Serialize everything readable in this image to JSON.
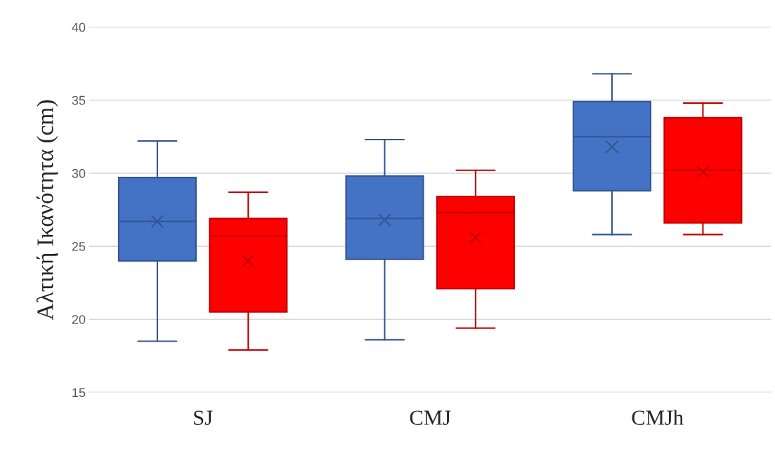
{
  "chart_data": {
    "type": "box",
    "ylabel": "Αλτική Ικανότητα (cm)",
    "categories": [
      "SJ",
      "CMJ",
      "CMJh"
    ],
    "ylim": [
      15,
      40
    ],
    "yticks": [
      15,
      20,
      25,
      30,
      35,
      40
    ],
    "grid": "y",
    "legend": false,
    "series": [
      {
        "color": "#4472c4",
        "boxes": [
          {
            "low": 18.5,
            "q1": 24.0,
            "median": 26.7,
            "q3": 29.7,
            "high": 32.2,
            "mean": 26.7
          },
          {
            "low": 18.6,
            "q1": 24.1,
            "median": 26.9,
            "q3": 29.8,
            "high": 32.3,
            "mean": 26.8
          },
          {
            "low": 25.8,
            "q1": 28.8,
            "median": 32.5,
            "q3": 34.9,
            "high": 36.8,
            "mean": 31.8
          }
        ]
      },
      {
        "color": "#ff0000",
        "boxes": [
          {
            "low": 17.9,
            "q1": 20.5,
            "median": 25.7,
            "q3": 26.9,
            "high": 28.7,
            "mean": 24.0
          },
          {
            "low": 19.4,
            "q1": 22.1,
            "median": 27.3,
            "q3": 28.4,
            "high": 30.2,
            "mean": 25.6
          },
          {
            "low": 25.8,
            "q1": 26.6,
            "median": 30.2,
            "q3": 33.8,
            "high": 34.8,
            "mean": 30.1
          }
        ]
      }
    ]
  }
}
